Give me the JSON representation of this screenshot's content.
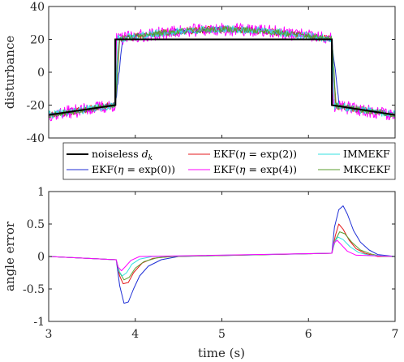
{
  "chart_data": [
    {
      "type": "line",
      "ylabel": "disturbance",
      "xlim": [
        3,
        7
      ],
      "ylim": [
        -40,
        40
      ],
      "xticks": [
        "",
        "",
        "",
        "",
        ""
      ],
      "yticks": [
        "-40",
        "-20",
        "0",
        "20",
        "40"
      ],
      "grid": false,
      "series": [
        {
          "name": "noiseless d_k",
          "color": "#000000",
          "kind": "truth",
          "x": [
            3.0,
            3.77,
            3.77,
            6.27,
            6.27,
            7.0
          ],
          "y": [
            -26,
            -20,
            20,
            20,
            -20,
            -26
          ]
        },
        {
          "name": "EKF(η = exp(2))",
          "color": "#e41a1c",
          "kind": "est",
          "lag": 0.045,
          "noise": 2.2,
          "seed": 11
        },
        {
          "name": "EKF(η = exp(0))",
          "color": "#1f2fd6",
          "kind": "est",
          "lag": 0.085,
          "noise": 1.6,
          "seed": 23
        },
        {
          "name": "EKF(η = exp(4))",
          "color": "#ff00ff",
          "kind": "est",
          "lag": 0.012,
          "noise": 4.0,
          "seed": 37
        },
        {
          "name": "IMMEKF",
          "color": "#33e0e0",
          "kind": "est",
          "lag": 0.03,
          "noise": 2.4,
          "seed": 41
        },
        {
          "name": "MKCEKF",
          "color": "#5a9e2f",
          "kind": "est",
          "lag": 0.05,
          "noise": 1.8,
          "seed": 53
        }
      ],
      "legend": {
        "position": "below-top-panel",
        "columns": 3
      }
    },
    {
      "type": "line",
      "xlabel": "time (s)",
      "ylabel": "angle error",
      "xlim": [
        3,
        7
      ],
      "ylim": [
        -1,
        1
      ],
      "xticks": [
        "3",
        "4",
        "5",
        "6",
        "7"
      ],
      "yticks": [
        "-1",
        "-0.5",
        "0",
        "0.5",
        "1"
      ],
      "grid": false,
      "series": [
        {
          "name": "EKF(η = exp(0))",
          "color": "#1f2fd6",
          "x": [
            3.0,
            3.78,
            3.82,
            3.87,
            3.92,
            3.98,
            4.05,
            4.15,
            4.3,
            4.5,
            6.27,
            6.3,
            6.35,
            6.4,
            6.45,
            6.52,
            6.6,
            6.7,
            6.8,
            7.0
          ],
          "y": [
            0.0,
            -0.05,
            -0.45,
            -0.72,
            -0.7,
            -0.5,
            -0.3,
            -0.15,
            -0.05,
            0.0,
            0.05,
            0.45,
            0.72,
            0.78,
            0.65,
            0.4,
            0.22,
            0.1,
            0.03,
            0.0
          ]
        },
        {
          "name": "EKF(η = exp(2))",
          "color": "#e41a1c",
          "x": [
            3.0,
            3.78,
            3.82,
            3.86,
            3.92,
            3.98,
            4.08,
            4.2,
            4.4,
            6.27,
            6.31,
            6.35,
            6.4,
            6.47,
            6.55,
            6.65,
            6.8,
            7.0
          ],
          "y": [
            0.0,
            -0.05,
            -0.3,
            -0.42,
            -0.4,
            -0.25,
            -0.1,
            -0.03,
            0.0,
            0.05,
            0.32,
            0.5,
            0.42,
            0.25,
            0.12,
            0.05,
            0.0,
            0.0
          ]
        },
        {
          "name": "MKCEKF",
          "color": "#5a9e2f",
          "x": [
            3.0,
            3.78,
            3.82,
            3.87,
            3.93,
            4.0,
            4.1,
            4.25,
            4.45,
            6.27,
            6.31,
            6.36,
            6.42,
            6.5,
            6.6,
            6.72,
            6.85,
            7.0
          ],
          "y": [
            0.0,
            -0.05,
            -0.25,
            -0.36,
            -0.32,
            -0.18,
            -0.08,
            -0.02,
            0.0,
            0.05,
            0.25,
            0.38,
            0.35,
            0.22,
            0.1,
            0.04,
            0.0,
            0.0
          ]
        },
        {
          "name": "IMMEKF",
          "color": "#33e0e0",
          "x": [
            3.0,
            3.78,
            3.81,
            3.85,
            3.9,
            3.96,
            4.05,
            4.2,
            6.27,
            6.3,
            6.34,
            6.4,
            6.48,
            6.58,
            6.7,
            7.0
          ],
          "y": [
            0.0,
            -0.05,
            -0.22,
            -0.3,
            -0.25,
            -0.12,
            -0.04,
            0.0,
            0.05,
            0.22,
            0.3,
            0.26,
            0.15,
            0.06,
            0.02,
            0.0
          ]
        },
        {
          "name": "EKF(η = exp(4))",
          "color": "#ff00ff",
          "x": [
            3.0,
            3.78,
            3.8,
            3.84,
            3.89,
            3.95,
            4.05,
            6.27,
            6.29,
            6.33,
            6.38,
            6.45,
            6.55,
            7.0
          ],
          "y": [
            0.0,
            -0.05,
            -0.16,
            -0.22,
            -0.15,
            -0.06,
            0.0,
            0.05,
            0.2,
            0.25,
            0.18,
            0.08,
            0.02,
            0.0
          ]
        }
      ]
    }
  ],
  "legend_labels": {
    "truth": "noiseless",
    "truth_symbol": "d",
    "truth_sub": "k",
    "ekf": "EKF(",
    "eta": "η",
    "eq": " = exp(",
    "close": "))",
    "v2": "2",
    "v0": "0",
    "v4": "4",
    "imm": "IMMEKF",
    "mkc": "MKCEKF"
  }
}
